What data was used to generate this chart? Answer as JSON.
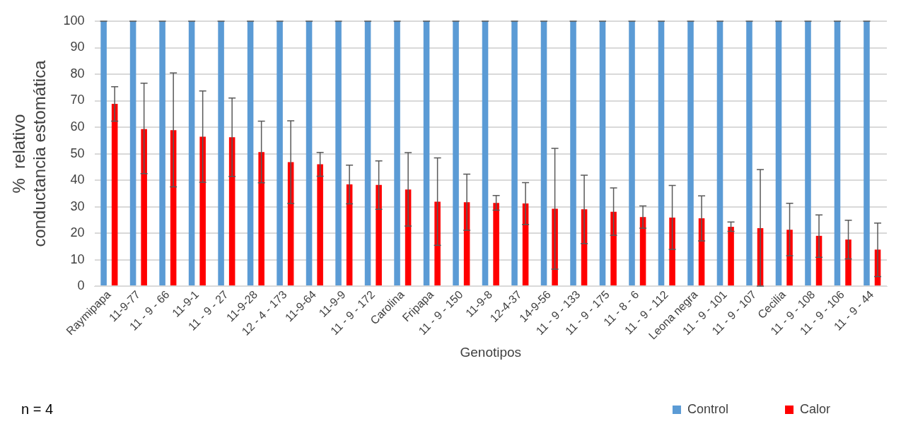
{
  "chart_data": {
    "type": "bar",
    "xlabel": "Genotipos",
    "ylabel": "% relativo  conductancia estomática",
    "categories": [
      "Raymipapa",
      "11-9-77",
      "11 - 9 - 66",
      "11-9-1",
      "11 - 9 - 27",
      "11-9-28",
      "12 - 4 - 173",
      "11-9-64",
      "11-9-9",
      "11 - 9 - 172",
      "Carolina",
      "Fripapa",
      "11 - 9 - 150",
      "11-9-8",
      "12-4-37",
      "14-9-56",
      "11 - 9 - 133",
      "11 - 9 - 175",
      "11 - 8 - 6",
      "11 - 9 - 112",
      "Leona negra",
      "11 - 9 - 101",
      "11 - 9 - 107",
      "Cecilia",
      "11 - 9 - 108",
      "11 - 9 - 106",
      "11 - 9 - 44"
    ],
    "series": [
      {
        "name": "Control",
        "color": "#5b9bd5",
        "values": [
          100,
          100,
          100,
          100,
          100,
          100,
          100,
          100,
          100,
          100,
          100,
          100,
          100,
          100,
          100,
          100,
          100,
          100,
          100,
          100,
          100,
          100,
          100,
          100,
          100,
          100,
          100
        ],
        "errors": [
          0,
          0,
          0,
          0,
          0,
          0,
          0,
          0,
          0,
          0,
          0,
          0,
          0,
          0,
          0,
          0,
          0,
          0,
          0,
          0,
          0,
          0,
          0,
          0,
          0,
          0,
          0
        ]
      },
      {
        "name": "Calor",
        "color": "#ff0000",
        "values": [
          68.8,
          59.3,
          58.9,
          56.4,
          56.2,
          50.6,
          46.8,
          46,
          38.4,
          38.2,
          36.5,
          31.9,
          31.7,
          31.4,
          31.2,
          29.2,
          29,
          28.1,
          26.1,
          25.9,
          25.6,
          22.4,
          21.9,
          21.3,
          19,
          17.6,
          13.8
        ],
        "errors": [
          [
            62.3,
            75.3
          ],
          [
            42.5,
            76.6
          ],
          [
            37.5,
            80.5
          ],
          [
            39.2,
            73.7
          ],
          [
            41.4,
            71
          ],
          [
            39,
            62.3
          ],
          [
            31.2,
            62.4
          ],
          [
            41.5,
            50.5
          ],
          [
            31.1,
            45.7
          ],
          [
            29,
            47.3
          ],
          [
            22.7,
            50.4
          ],
          [
            15.4,
            48.4
          ],
          [
            21.1,
            42.3
          ],
          [
            28.7,
            34.2
          ],
          [
            23.3,
            39.1
          ],
          [
            6.4,
            52
          ],
          [
            16.1,
            41.9
          ],
          [
            19.2,
            37.1
          ],
          [
            21.9,
            30.3
          ],
          [
            13.9,
            38
          ],
          [
            17.1,
            34.1
          ],
          [
            20.7,
            24.2
          ],
          [
            0,
            44
          ],
          [
            11.5,
            31.3
          ],
          [
            10.9,
            26.9
          ],
          [
            10.3,
            24.9
          ],
          [
            3.6,
            23.8
          ]
        ]
      }
    ],
    "ylim": [
      0,
      100
    ],
    "yticks": [
      0,
      10,
      20,
      30,
      40,
      50,
      60,
      70,
      80,
      90,
      100
    ],
    "grid": "y",
    "legend": "bottom right",
    "annotations": [
      "n = 4"
    ]
  }
}
